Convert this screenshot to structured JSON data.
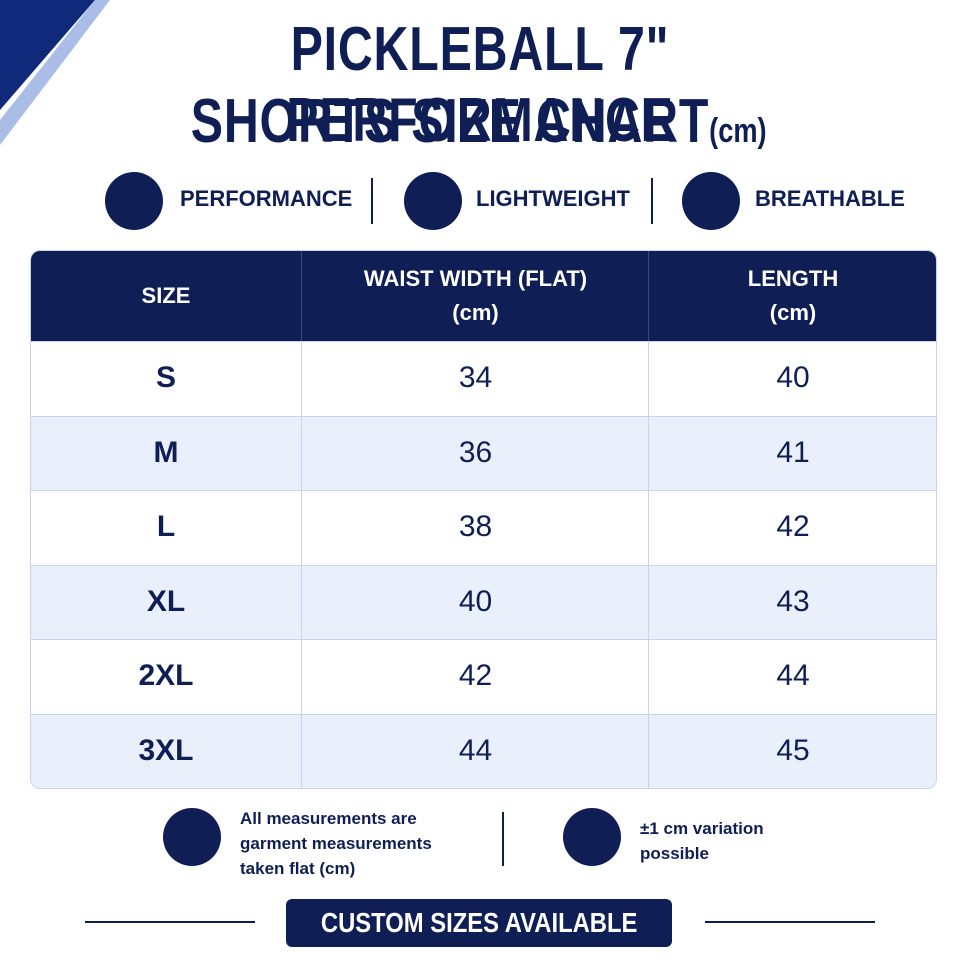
{
  "header": {
    "title_lines": [
      "PICKLEBALL 7\" PERFORMANCE",
      "SHORTS SIZE CHART"
    ],
    "unit": "(cm)"
  },
  "features": [
    "PERFORMANCE",
    "LIGHTWEIGHT",
    "BREATHABLE"
  ],
  "table": {
    "columns": [
      [
        "SIZE"
      ],
      [
        "WAIST WIDTH (FLAT)",
        "(cm)"
      ],
      [
        "LENGTH",
        "(cm)"
      ]
    ],
    "rows": [
      [
        "S",
        "34",
        "40"
      ],
      [
        "M",
        "36",
        "41"
      ],
      [
        "L",
        "38",
        "42"
      ],
      [
        "XL",
        "40",
        "43"
      ],
      [
        "2XL",
        "42",
        "44"
      ],
      [
        "3XL",
        "44",
        "45"
      ]
    ]
  },
  "notes": [
    [
      "All measurements are",
      "garment measurements",
      "taken flat (cm)"
    ],
    [
      "±1 cm variation",
      "possible"
    ]
  ],
  "banner": "CUSTOM SIZES AVAILABLE"
}
